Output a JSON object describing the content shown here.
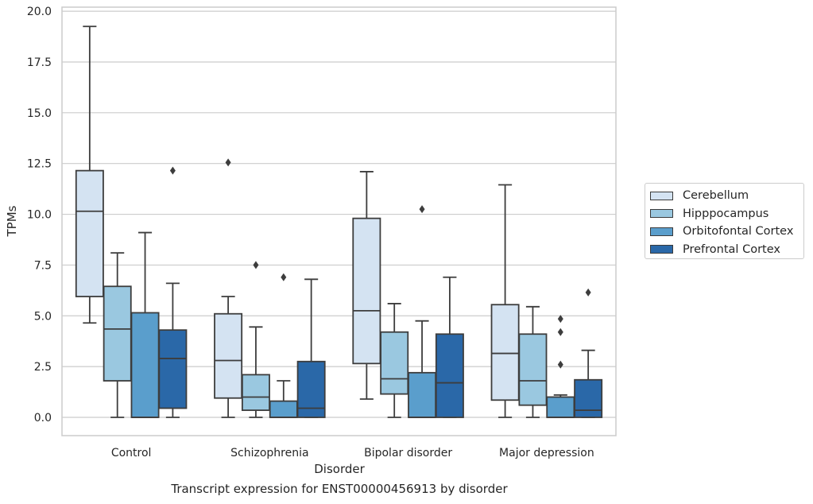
{
  "chart_data": {
    "type": "box",
    "title": "",
    "caption": "Transcript expression for ENST00000456913 by disorder",
    "xlabel": "Disorder",
    "ylabel": "TPMs",
    "ylim": [
      -0.9,
      20.2
    ],
    "yticks": [
      "0.0",
      "2.5",
      "5.0",
      "7.5",
      "10.0",
      "12.5",
      "15.0",
      "17.5",
      "20.0"
    ],
    "ytick_values": [
      0,
      2.5,
      5,
      7.5,
      10,
      12.5,
      15,
      17.5,
      20
    ],
    "grid": "horizontal",
    "legend_position": "right",
    "categories": [
      "Control",
      "Schizophrenia",
      "Bipolar disorder",
      "Major depression"
    ],
    "series": [
      {
        "name": "Cerebellum",
        "color": "#d4e3f2",
        "boxes": [
          {
            "whislo": 4.65,
            "q1": 5.95,
            "med": 10.15,
            "q3": 12.15,
            "whishi": 19.25,
            "fliers": []
          },
          {
            "whislo": 0.0,
            "q1": 0.95,
            "med": 2.8,
            "q3": 5.1,
            "whishi": 5.95,
            "fliers": [
              12.55
            ]
          },
          {
            "whislo": 0.9,
            "q1": 2.65,
            "med": 5.25,
            "q3": 9.8,
            "whishi": 12.1,
            "fliers": []
          },
          {
            "whislo": 0.0,
            "q1": 0.85,
            "med": 3.15,
            "q3": 5.55,
            "whishi": 11.45,
            "fliers": []
          }
        ]
      },
      {
        "name": "Hipppocampus",
        "color": "#9ac8e0",
        "boxes": [
          {
            "whislo": 0.0,
            "q1": 1.8,
            "med": 4.35,
            "q3": 6.45,
            "whishi": 8.1,
            "fliers": []
          },
          {
            "whislo": 0.0,
            "q1": 0.35,
            "med": 1.0,
            "q3": 2.1,
            "whishi": 4.45,
            "fliers": [
              7.5
            ]
          },
          {
            "whislo": 0.0,
            "q1": 1.15,
            "med": 1.9,
            "q3": 4.2,
            "whishi": 5.6,
            "fliers": []
          },
          {
            "whislo": 0.0,
            "q1": 0.6,
            "med": 1.8,
            "q3": 4.1,
            "whishi": 5.45,
            "fliers": []
          }
        ]
      },
      {
        "name": "Orbitofontal Cortex",
        "color": "#5a9ecc",
        "boxes": [
          {
            "whislo": 0.0,
            "q1": 0.0,
            "med": 0.0,
            "q3": 5.15,
            "whishi": 9.1,
            "fliers": []
          },
          {
            "whislo": 0.0,
            "q1": 0.0,
            "med": 0.0,
            "q3": 0.8,
            "whishi": 1.8,
            "fliers": [
              6.9
            ]
          },
          {
            "whislo": 0.0,
            "q1": 0.0,
            "med": 0.0,
            "q3": 2.2,
            "whishi": 4.75,
            "fliers": [
              10.25
            ]
          },
          {
            "whislo": 0.0,
            "q1": 0.0,
            "med": 0.0,
            "q3": 1.0,
            "whishi": 1.1,
            "fliers": [
              2.6,
              4.2,
              4.85
            ]
          }
        ]
      },
      {
        "name": "Prefrontal Cortex",
        "color": "#2a68a8",
        "boxes": [
          {
            "whislo": 0.0,
            "q1": 0.45,
            "med": 2.9,
            "q3": 4.3,
            "whishi": 6.6,
            "fliers": [
              12.15
            ]
          },
          {
            "whislo": 0.0,
            "q1": 0.0,
            "med": 0.45,
            "q3": 2.75,
            "whishi": 6.8,
            "fliers": []
          },
          {
            "whislo": 0.0,
            "q1": 0.0,
            "med": 1.7,
            "q3": 4.1,
            "whishi": 6.9,
            "fliers": []
          },
          {
            "whislo": 0.0,
            "q1": 0.0,
            "med": 0.35,
            "q3": 1.85,
            "whishi": 3.3,
            "fliers": [
              6.15
            ]
          }
        ]
      }
    ]
  }
}
